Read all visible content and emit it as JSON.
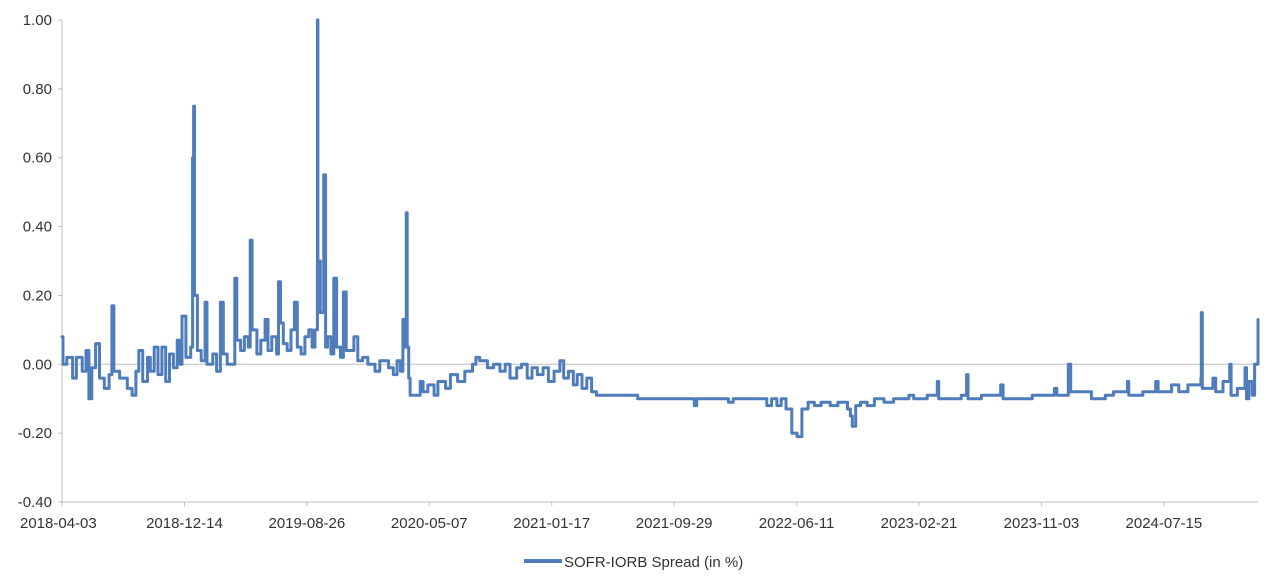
{
  "chart_data": {
    "type": "line",
    "title": "",
    "xlabel": "",
    "ylabel": "",
    "x_tick_labels": [
      "2018-04-03",
      "2018-12-14",
      "2019-08-26",
      "2020-05-07",
      "2021-01-17",
      "2021-09-29",
      "2022-06-11",
      "2023-02-21",
      "2023-11-03",
      "2024-07-15"
    ],
    "y_tick_labels": [
      "1.00",
      "0.80",
      "0.60",
      "0.40",
      "0.20",
      "0.00",
      "-0.20",
      "-0.40"
    ],
    "ylim": [
      -0.4,
      1.0
    ],
    "xlim": [
      "2018-04-03",
      "2025-01-27"
    ],
    "grid": "horizontal zero line only",
    "legend_position": "bottom-center",
    "colors": {
      "series": "#4f7cba",
      "axis": "#bfbfbf",
      "text": "#333333"
    },
    "series": [
      {
        "name": "SOFR-IORB Spread (in %)",
        "points": [
          [
            "2018-04-03",
            0.08
          ],
          [
            "2018-04-05",
            0.0
          ],
          [
            "2018-04-13",
            0.02
          ],
          [
            "2018-04-25",
            -0.04
          ],
          [
            "2018-05-03",
            0.02
          ],
          [
            "2018-05-15",
            -0.02
          ],
          [
            "2018-05-23",
            0.04
          ],
          [
            "2018-05-29",
            -0.1
          ],
          [
            "2018-06-04",
            -0.01
          ],
          [
            "2018-06-12",
            0.06
          ],
          [
            "2018-06-20",
            -0.04
          ],
          [
            "2018-06-30",
            -0.07
          ],
          [
            "2018-07-10",
            -0.03
          ],
          [
            "2018-07-16",
            0.17
          ],
          [
            "2018-07-20",
            -0.02
          ],
          [
            "2018-08-01",
            -0.04
          ],
          [
            "2018-08-17",
            -0.07
          ],
          [
            "2018-08-27",
            -0.09
          ],
          [
            "2018-09-04",
            -0.02
          ],
          [
            "2018-09-10",
            0.04
          ],
          [
            "2018-09-18",
            -0.05
          ],
          [
            "2018-09-28",
            0.02
          ],
          [
            "2018-10-04",
            -0.02
          ],
          [
            "2018-10-12",
            0.05
          ],
          [
            "2018-10-20",
            -0.03
          ],
          [
            "2018-10-28",
            0.05
          ],
          [
            "2018-11-05",
            -0.05
          ],
          [
            "2018-11-13",
            0.03
          ],
          [
            "2018-11-21",
            -0.01
          ],
          [
            "2018-11-29",
            0.07
          ],
          [
            "2018-12-05",
            0.0
          ],
          [
            "2018-12-09",
            0.14
          ],
          [
            "2018-12-17",
            0.02
          ],
          [
            "2018-12-27",
            0.05
          ],
          [
            "2018-12-31",
            0.6
          ],
          [
            "2019-01-02",
            0.75
          ],
          [
            "2019-01-04",
            0.2
          ],
          [
            "2019-01-10",
            0.04
          ],
          [
            "2019-01-18",
            0.01
          ],
          [
            "2019-01-26",
            0.18
          ],
          [
            "2019-01-30",
            0.0
          ],
          [
            "2019-02-11",
            0.03
          ],
          [
            "2019-02-19",
            -0.02
          ],
          [
            "2019-02-27",
            0.18
          ],
          [
            "2019-03-05",
            0.03
          ],
          [
            "2019-03-13",
            0.0
          ],
          [
            "2019-03-29",
            0.25
          ],
          [
            "2019-04-02",
            0.07
          ],
          [
            "2019-04-10",
            0.04
          ],
          [
            "2019-04-18",
            0.08
          ],
          [
            "2019-04-26",
            0.05
          ],
          [
            "2019-04-30",
            0.36
          ],
          [
            "2019-05-04",
            0.1
          ],
          [
            "2019-05-14",
            0.03
          ],
          [
            "2019-05-22",
            0.07
          ],
          [
            "2019-05-31",
            0.13
          ],
          [
            "2019-06-06",
            0.04
          ],
          [
            "2019-06-14",
            0.08
          ],
          [
            "2019-06-24",
            0.03
          ],
          [
            "2019-06-28",
            0.24
          ],
          [
            "2019-07-02",
            0.12
          ],
          [
            "2019-07-08",
            0.06
          ],
          [
            "2019-07-16",
            0.04
          ],
          [
            "2019-07-24",
            0.1
          ],
          [
            "2019-07-31",
            0.18
          ],
          [
            "2019-08-06",
            0.05
          ],
          [
            "2019-08-14",
            0.03
          ],
          [
            "2019-08-22",
            0.08
          ],
          [
            "2019-08-30",
            0.1
          ],
          [
            "2019-09-06",
            0.05
          ],
          [
            "2019-09-12",
            0.1
          ],
          [
            "2019-09-17",
            1.0
          ],
          [
            "2019-09-18",
            0.3
          ],
          [
            "2019-09-23",
            0.15
          ],
          [
            "2019-09-30",
            0.55
          ],
          [
            "2019-10-04",
            0.05
          ],
          [
            "2019-10-08",
            0.08
          ],
          [
            "2019-10-15",
            0.03
          ],
          [
            "2019-10-21",
            0.25
          ],
          [
            "2019-10-27",
            0.05
          ],
          [
            "2019-11-04",
            0.02
          ],
          [
            "2019-11-10",
            0.21
          ],
          [
            "2019-11-16",
            0.04
          ],
          [
            "2019-12-02",
            0.08
          ],
          [
            "2019-12-10",
            0.01
          ],
          [
            "2019-12-20",
            0.02
          ],
          [
            "2019-12-31",
            0.0
          ],
          [
            "2020-01-15",
            -0.02
          ],
          [
            "2020-01-25",
            0.01
          ],
          [
            "2020-02-12",
            -0.01
          ],
          [
            "2020-02-22",
            -0.03
          ],
          [
            "2020-03-01",
            0.01
          ],
          [
            "2020-03-08",
            -0.02
          ],
          [
            "2020-03-13",
            0.13
          ],
          [
            "2020-03-17",
            0.05
          ],
          [
            "2020-03-20",
            0.44
          ],
          [
            "2020-03-22",
            0.05
          ],
          [
            "2020-03-25",
            -0.04
          ],
          [
            "2020-03-28",
            -0.09
          ],
          [
            "2020-04-10",
            -0.09
          ],
          [
            "2020-04-18",
            -0.05
          ],
          [
            "2020-04-24",
            -0.08
          ],
          [
            "2020-05-04",
            -0.06
          ],
          [
            "2020-05-17",
            -0.09
          ],
          [
            "2020-05-25",
            -0.05
          ],
          [
            "2020-06-10",
            -0.07
          ],
          [
            "2020-06-20",
            -0.03
          ],
          [
            "2020-07-05",
            -0.05
          ],
          [
            "2020-07-20",
            -0.02
          ],
          [
            "2020-08-05",
            0.0
          ],
          [
            "2020-08-12",
            0.02
          ],
          [
            "2020-08-20",
            0.01
          ],
          [
            "2020-09-05",
            -0.01
          ],
          [
            "2020-09-18",
            0.0
          ],
          [
            "2020-10-01",
            -0.02
          ],
          [
            "2020-10-12",
            0.0
          ],
          [
            "2020-10-22",
            -0.04
          ],
          [
            "2020-11-05",
            -0.01
          ],
          [
            "2020-11-15",
            0.0
          ],
          [
            "2020-11-27",
            -0.04
          ],
          [
            "2020-12-07",
            -0.01
          ],
          [
            "2020-12-18",
            -0.03
          ],
          [
            "2020-12-30",
            -0.01
          ],
          [
            "2021-01-10",
            -0.05
          ],
          [
            "2021-01-22",
            -0.02
          ],
          [
            "2021-02-03",
            0.01
          ],
          [
            "2021-02-11",
            -0.04
          ],
          [
            "2021-02-21",
            -0.02
          ],
          [
            "2021-03-03",
            -0.06
          ],
          [
            "2021-03-11",
            -0.03
          ],
          [
            "2021-03-21",
            -0.07
          ],
          [
            "2021-03-31",
            -0.04
          ],
          [
            "2021-04-10",
            -0.08
          ],
          [
            "2021-04-20",
            -0.09
          ],
          [
            "2021-07-10",
            -0.09
          ],
          [
            "2021-07-15",
            -0.1
          ],
          [
            "2021-11-05",
            -0.1
          ],
          [
            "2021-11-10",
            -0.12
          ],
          [
            "2021-11-15",
            -0.1
          ],
          [
            "2022-01-10",
            -0.1
          ],
          [
            "2022-01-20",
            -0.11
          ],
          [
            "2022-01-30",
            -0.1
          ],
          [
            "2022-04-01",
            -0.1
          ],
          [
            "2022-04-10",
            -0.12
          ],
          [
            "2022-04-20",
            -0.1
          ],
          [
            "2022-05-01",
            -0.12
          ],
          [
            "2022-05-10",
            -0.1
          ],
          [
            "2022-05-20",
            -0.13
          ],
          [
            "2022-06-01",
            -0.2
          ],
          [
            "2022-06-12",
            -0.21
          ],
          [
            "2022-06-22",
            -0.13
          ],
          [
            "2022-07-05",
            -0.11
          ],
          [
            "2022-07-18",
            -0.12
          ],
          [
            "2022-08-01",
            -0.11
          ],
          [
            "2022-08-20",
            -0.12
          ],
          [
            "2022-09-05",
            -0.11
          ],
          [
            "2022-09-25",
            -0.13
          ],
          [
            "2022-10-01",
            -0.15
          ],
          [
            "2022-10-05",
            -0.18
          ],
          [
            "2022-10-12",
            -0.12
          ],
          [
            "2022-10-22",
            -0.11
          ],
          [
            "2022-11-05",
            -0.12
          ],
          [
            "2022-11-20",
            -0.1
          ],
          [
            "2022-12-10",
            -0.11
          ],
          [
            "2022-12-30",
            -0.1
          ],
          [
            "2023-01-31",
            -0.09
          ],
          [
            "2023-02-10",
            -0.1
          ],
          [
            "2023-03-10",
            -0.09
          ],
          [
            "2023-03-31",
            -0.05
          ],
          [
            "2023-04-03",
            -0.1
          ],
          [
            "2023-05-20",
            -0.09
          ],
          [
            "2023-05-31",
            -0.03
          ],
          [
            "2023-06-03",
            -0.1
          ],
          [
            "2023-07-01",
            -0.09
          ],
          [
            "2023-08-10",
            -0.06
          ],
          [
            "2023-08-15",
            -0.1
          ],
          [
            "2023-09-29",
            -0.1
          ],
          [
            "2023-10-15",
            -0.09
          ],
          [
            "2023-11-15",
            -0.09
          ],
          [
            "2023-11-30",
            -0.07
          ],
          [
            "2023-12-05",
            -0.09
          ],
          [
            "2023-12-29",
            0.0
          ],
          [
            "2024-01-03",
            -0.08
          ],
          [
            "2024-01-31",
            -0.08
          ],
          [
            "2024-02-15",
            -0.1
          ],
          [
            "2024-03-15",
            -0.09
          ],
          [
            "2024-04-01",
            -0.08
          ],
          [
            "2024-04-30",
            -0.05
          ],
          [
            "2024-05-03",
            -0.09
          ],
          [
            "2024-06-01",
            -0.08
          ],
          [
            "2024-06-28",
            -0.05
          ],
          [
            "2024-07-03",
            -0.08
          ],
          [
            "2024-07-31",
            -0.06
          ],
          [
            "2024-08-15",
            -0.08
          ],
          [
            "2024-09-03",
            -0.06
          ],
          [
            "2024-09-30",
            -0.04
          ],
          [
            "2024-10-01",
            0.15
          ],
          [
            "2024-10-03",
            -0.07
          ],
          [
            "2024-10-25",
            -0.04
          ],
          [
            "2024-10-31",
            -0.08
          ],
          [
            "2024-11-15",
            -0.05
          ],
          [
            "2024-11-29",
            0.0
          ],
          [
            "2024-12-02",
            -0.09
          ],
          [
            "2024-12-15",
            -0.07
          ],
          [
            "2024-12-31",
            -0.01
          ],
          [
            "2025-01-03",
            -0.1
          ],
          [
            "2025-01-08",
            -0.05
          ],
          [
            "2025-01-15",
            -0.09
          ],
          [
            "2025-01-20",
            0.0
          ],
          [
            "2025-01-27",
            0.13
          ]
        ]
      }
    ]
  }
}
